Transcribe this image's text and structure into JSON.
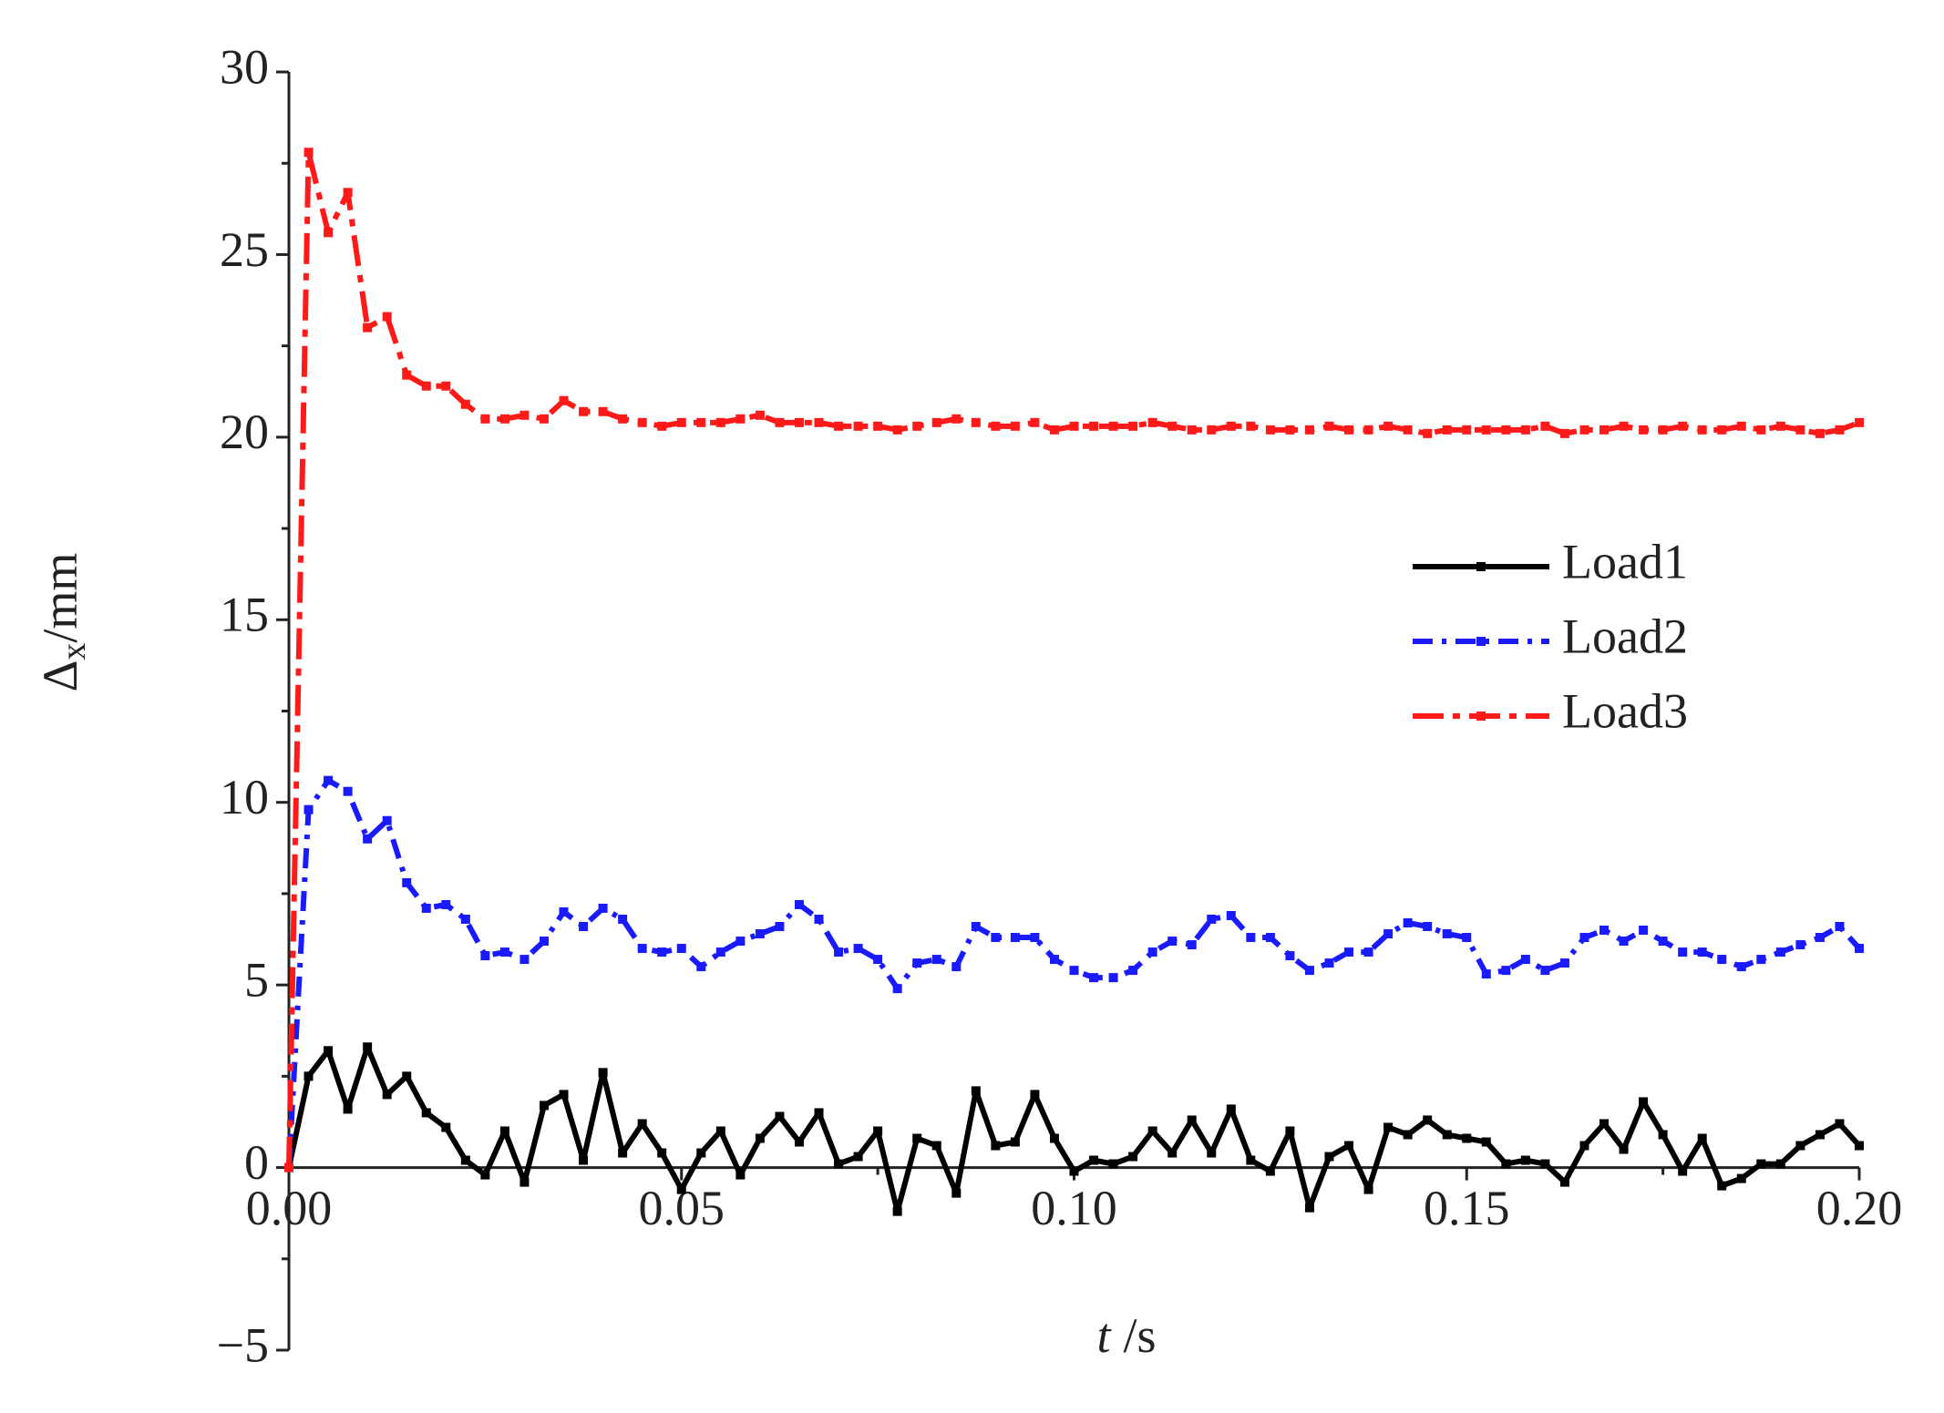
{
  "chart_data": {
    "type": "line",
    "xlabel": {
      "symbol": "t",
      "unit": "/s"
    },
    "ylabel": {
      "symbol": "Δ",
      "subscript": "x",
      "unit": "/mm"
    },
    "x": [
      0,
      0.0025,
      0.005,
      0.0075,
      0.01,
      0.0125,
      0.015,
      0.0175,
      0.02,
      0.0225,
      0.025,
      0.0275,
      0.03,
      0.0325,
      0.035,
      0.0375,
      0.04,
      0.0425,
      0.045,
      0.0475,
      0.05,
      0.0525,
      0.055,
      0.0575,
      0.06,
      0.0625,
      0.065,
      0.0675,
      0.07,
      0.0725,
      0.075,
      0.0775,
      0.08,
      0.0825,
      0.085,
      0.0875,
      0.09,
      0.0925,
      0.095,
      0.0975,
      0.1,
      0.1025,
      0.105,
      0.1075,
      0.11,
      0.1125,
      0.115,
      0.1175,
      0.12,
      0.1225,
      0.125,
      0.1275,
      0.13,
      0.1325,
      0.135,
      0.1375,
      0.14,
      0.1425,
      0.145,
      0.1475,
      0.15,
      0.1525,
      0.155,
      0.1575,
      0.16,
      0.1625,
      0.165,
      0.1675,
      0.17,
      0.1725,
      0.175,
      0.1775,
      0.18,
      0.1825,
      0.185,
      0.1875,
      0.19,
      0.1925,
      0.195,
      0.1975,
      0.2
    ],
    "series": [
      {
        "name": "Load1",
        "color": "#000000",
        "values": [
          0,
          2.5,
          3.2,
          1.6,
          3.3,
          2.0,
          2.5,
          1.5,
          1.1,
          0.2,
          -0.2,
          1.0,
          -0.4,
          1.7,
          2.0,
          0.2,
          2.6,
          0.4,
          1.2,
          0.4,
          -0.6,
          0.4,
          1.0,
          -0.2,
          0.8,
          1.4,
          0.7,
          1.5,
          0.1,
          0.3,
          1.0,
          -1.2,
          0.8,
          0.6,
          -0.7,
          2.1,
          0.6,
          0.7,
          2.0,
          0.8,
          -0.1,
          0.2,
          0.1,
          0.3,
          1.0,
          0.4,
          1.3,
          0.4,
          1.6,
          0.2,
          -0.1,
          1.0,
          -1.1,
          0.3,
          0.6,
          -0.6,
          1.1,
          0.9,
          1.3,
          0.9,
          0.8,
          0.7,
          0.1,
          0.2,
          0.1,
          -0.4,
          0.6,
          1.2,
          0.5,
          1.8,
          0.9,
          -0.1,
          0.8,
          -0.5,
          -0.3,
          0.1,
          0.1,
          0.6,
          0.9,
          1.2,
          0.6
        ]
      },
      {
        "name": "Load2",
        "color": "#1a1aff",
        "values": [
          0,
          9.8,
          10.6,
          10.3,
          9.0,
          9.5,
          7.8,
          7.1,
          7.2,
          6.8,
          5.8,
          5.9,
          5.7,
          6.2,
          7.0,
          6.6,
          7.1,
          6.8,
          6.0,
          5.9,
          6.0,
          5.5,
          5.9,
          6.2,
          6.4,
          6.6,
          7.2,
          6.8,
          5.9,
          6.0,
          5.7,
          4.9,
          5.6,
          5.7,
          5.5,
          6.6,
          6.3,
          6.3,
          6.3,
          5.7,
          5.4,
          5.2,
          5.2,
          5.4,
          5.9,
          6.2,
          6.1,
          6.8,
          6.9,
          6.3,
          6.3,
          5.8,
          5.4,
          5.6,
          5.9,
          5.9,
          6.4,
          6.7,
          6.6,
          6.4,
          6.3,
          5.3,
          5.4,
          5.7,
          5.4,
          5.6,
          6.3,
          6.5,
          6.2,
          6.5,
          6.2,
          5.9,
          5.9,
          5.7,
          5.5,
          5.7,
          5.9,
          6.1,
          6.3,
          6.6,
          6.0
        ]
      },
      {
        "name": "Load3",
        "color": "#ff1a1a",
        "values": [
          0,
          27.8,
          25.6,
          26.7,
          23.0,
          23.3,
          21.7,
          21.4,
          21.4,
          20.9,
          20.5,
          20.5,
          20.6,
          20.5,
          21.0,
          20.7,
          20.7,
          20.5,
          20.4,
          20.3,
          20.4,
          20.4,
          20.4,
          20.5,
          20.6,
          20.4,
          20.4,
          20.4,
          20.3,
          20.3,
          20.3,
          20.2,
          20.3,
          20.4,
          20.5,
          20.4,
          20.3,
          20.3,
          20.4,
          20.2,
          20.3,
          20.3,
          20.3,
          20.3,
          20.4,
          20.3,
          20.2,
          20.2,
          20.3,
          20.3,
          20.2,
          20.2,
          20.2,
          20.3,
          20.2,
          20.2,
          20.3,
          20.2,
          20.1,
          20.2,
          20.2,
          20.2,
          20.2,
          20.2,
          20.3,
          20.1,
          20.2,
          20.2,
          20.3,
          20.2,
          20.2,
          20.3,
          20.2,
          20.2,
          20.3,
          20.2,
          20.3,
          20.2,
          20.1,
          20.2,
          20.4
        ]
      }
    ],
    "xlim": [
      0,
      0.2
    ],
    "xticks": [
      {
        "value": 0,
        "label": "0.00"
      },
      {
        "value": 0.05,
        "label": "0.05"
      },
      {
        "value": 0.1,
        "label": "0.10"
      },
      {
        "value": 0.15,
        "label": "0.15"
      },
      {
        "value": 0.2,
        "label": "0.20"
      }
    ],
    "ylim": [
      -5,
      30
    ],
    "yticks": [
      {
        "value": -5,
        "label": "−5"
      },
      0,
      5,
      10,
      15,
      20,
      25,
      30
    ],
    "grid": false,
    "legend": "right"
  }
}
